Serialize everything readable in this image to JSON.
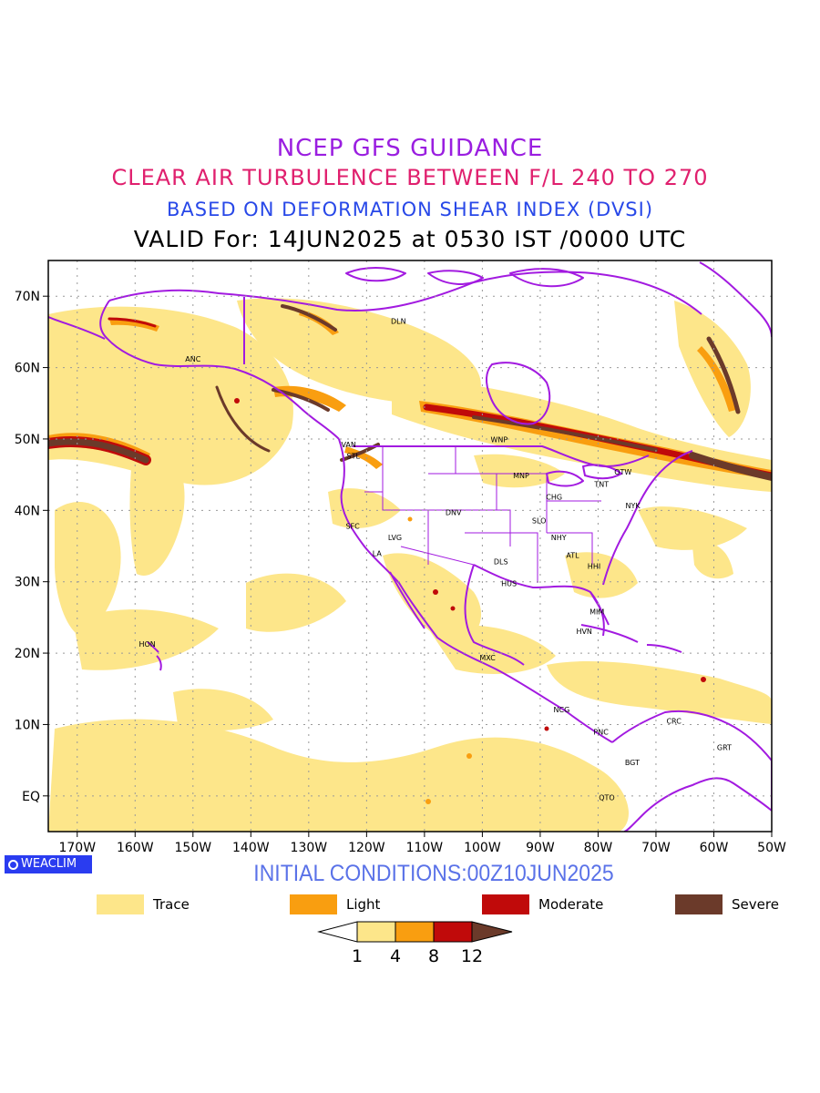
{
  "titles": {
    "line1": "NCEP GFS GUIDANCE",
    "line2": "CLEAR AIR TURBULENCE BETWEEN F/L 240 TO 270",
    "line3": "BASED ON DEFORMATION SHEAR INDEX (DVSI)",
    "line4": "VALID For: 14JUN2025 at 0530 IST /0000 UTC"
  },
  "map": {
    "lon_range": [
      -175,
      -50
    ],
    "lat_range": [
      -5,
      75
    ],
    "lat_ticks": [
      {
        "value": 70,
        "label": "70N"
      },
      {
        "value": 60,
        "label": "60N"
      },
      {
        "value": 50,
        "label": "50N"
      },
      {
        "value": 40,
        "label": "40N"
      },
      {
        "value": 30,
        "label": "30N"
      },
      {
        "value": 20,
        "label": "20N"
      },
      {
        "value": 10,
        "label": "10N"
      },
      {
        "value": 0,
        "label": "EQ"
      }
    ],
    "lon_ticks": [
      {
        "value": -170,
        "label": "170W"
      },
      {
        "value": -160,
        "label": "160W"
      },
      {
        "value": -150,
        "label": "150W"
      },
      {
        "value": -140,
        "label": "140W"
      },
      {
        "value": -130,
        "label": "130W"
      },
      {
        "value": -120,
        "label": "120W"
      },
      {
        "value": -110,
        "label": "110W"
      },
      {
        "value": -100,
        "label": "100W"
      },
      {
        "value": -90,
        "label": "90W"
      },
      {
        "value": -80,
        "label": "80W"
      },
      {
        "value": -70,
        "label": "70W"
      },
      {
        "value": -60,
        "label": "60W"
      },
      {
        "value": -50,
        "label": "50W"
      }
    ],
    "stations": [
      {
        "code": "DLN",
        "lon": -114.5,
        "lat": 66.5
      },
      {
        "code": "ANC",
        "lon": -150.0,
        "lat": 61.2
      },
      {
        "code": "VAN",
        "lon": -123.1,
        "lat": 49.2
      },
      {
        "code": "STL",
        "lon": -122.3,
        "lat": 47.6
      },
      {
        "code": "WNP",
        "lon": -97.1,
        "lat": 49.9
      },
      {
        "code": "OTW",
        "lon": -75.7,
        "lat": 45.4
      },
      {
        "code": "TNT",
        "lon": -79.4,
        "lat": 43.7
      },
      {
        "code": "MNP",
        "lon": -93.3,
        "lat": 44.9
      },
      {
        "code": "CHG",
        "lon": -87.6,
        "lat": 41.9
      },
      {
        "code": "NYK",
        "lon": -74.0,
        "lat": 40.7
      },
      {
        "code": "DNV",
        "lon": -105.0,
        "lat": 39.7
      },
      {
        "code": "SFC",
        "lon": -122.4,
        "lat": 37.8
      },
      {
        "code": "SLO",
        "lon": -90.2,
        "lat": 38.6
      },
      {
        "code": "LVG",
        "lon": -115.1,
        "lat": 36.2
      },
      {
        "code": "NHY",
        "lon": -86.8,
        "lat": 36.2
      },
      {
        "code": "LA",
        "lon": -118.2,
        "lat": 34.0
      },
      {
        "code": "ATL",
        "lon": -84.4,
        "lat": 33.7
      },
      {
        "code": "DLS",
        "lon": -96.8,
        "lat": 32.8
      },
      {
        "code": "HHI",
        "lon": -80.7,
        "lat": 32.2
      },
      {
        "code": "HUS",
        "lon": -95.4,
        "lat": 29.8
      },
      {
        "code": "MIM",
        "lon": -80.2,
        "lat": 25.8
      },
      {
        "code": "HVN",
        "lon": -82.4,
        "lat": 23.1
      },
      {
        "code": "HON",
        "lon": -157.9,
        "lat": 21.3
      },
      {
        "code": "MXC",
        "lon": -99.1,
        "lat": 19.4
      },
      {
        "code": "NCG",
        "lon": -86.3,
        "lat": 12.1
      },
      {
        "code": "CRC",
        "lon": -66.9,
        "lat": 10.5
      },
      {
        "code": "PNC",
        "lon": -79.5,
        "lat": 9.0
      },
      {
        "code": "GRT",
        "lon": -58.2,
        "lat": 6.8
      },
      {
        "code": "BGT",
        "lon": -74.1,
        "lat": 4.7
      },
      {
        "code": "QTO",
        "lon": -78.5,
        "lat": -0.2
      }
    ]
  },
  "badge": {
    "text": "WEACLIM",
    "icon": "weaclim-ring-icon"
  },
  "initial_conditions": "INITIAL CONDITIONS:00Z10JUN2025",
  "legend": [
    {
      "label": "Trace",
      "color": "#fde68a"
    },
    {
      "label": "Light",
      "color": "#f99e10"
    },
    {
      "label": "Moderate",
      "color": "#c00a0a"
    },
    {
      "label": "Severe",
      "color": "#6b3a2a"
    }
  ],
  "colorbar": {
    "ticks": [
      "1",
      "4",
      "8",
      "12"
    ],
    "colors": [
      "#ffffff",
      "#fde68a",
      "#f99e10",
      "#c00a0a",
      "#6b3a2a"
    ]
  },
  "colors": {
    "boundary": "#a21ae0",
    "trace": "#fde68a",
    "light": "#f99e10",
    "moderate": "#c00a0a",
    "severe": "#6b3a2a"
  }
}
